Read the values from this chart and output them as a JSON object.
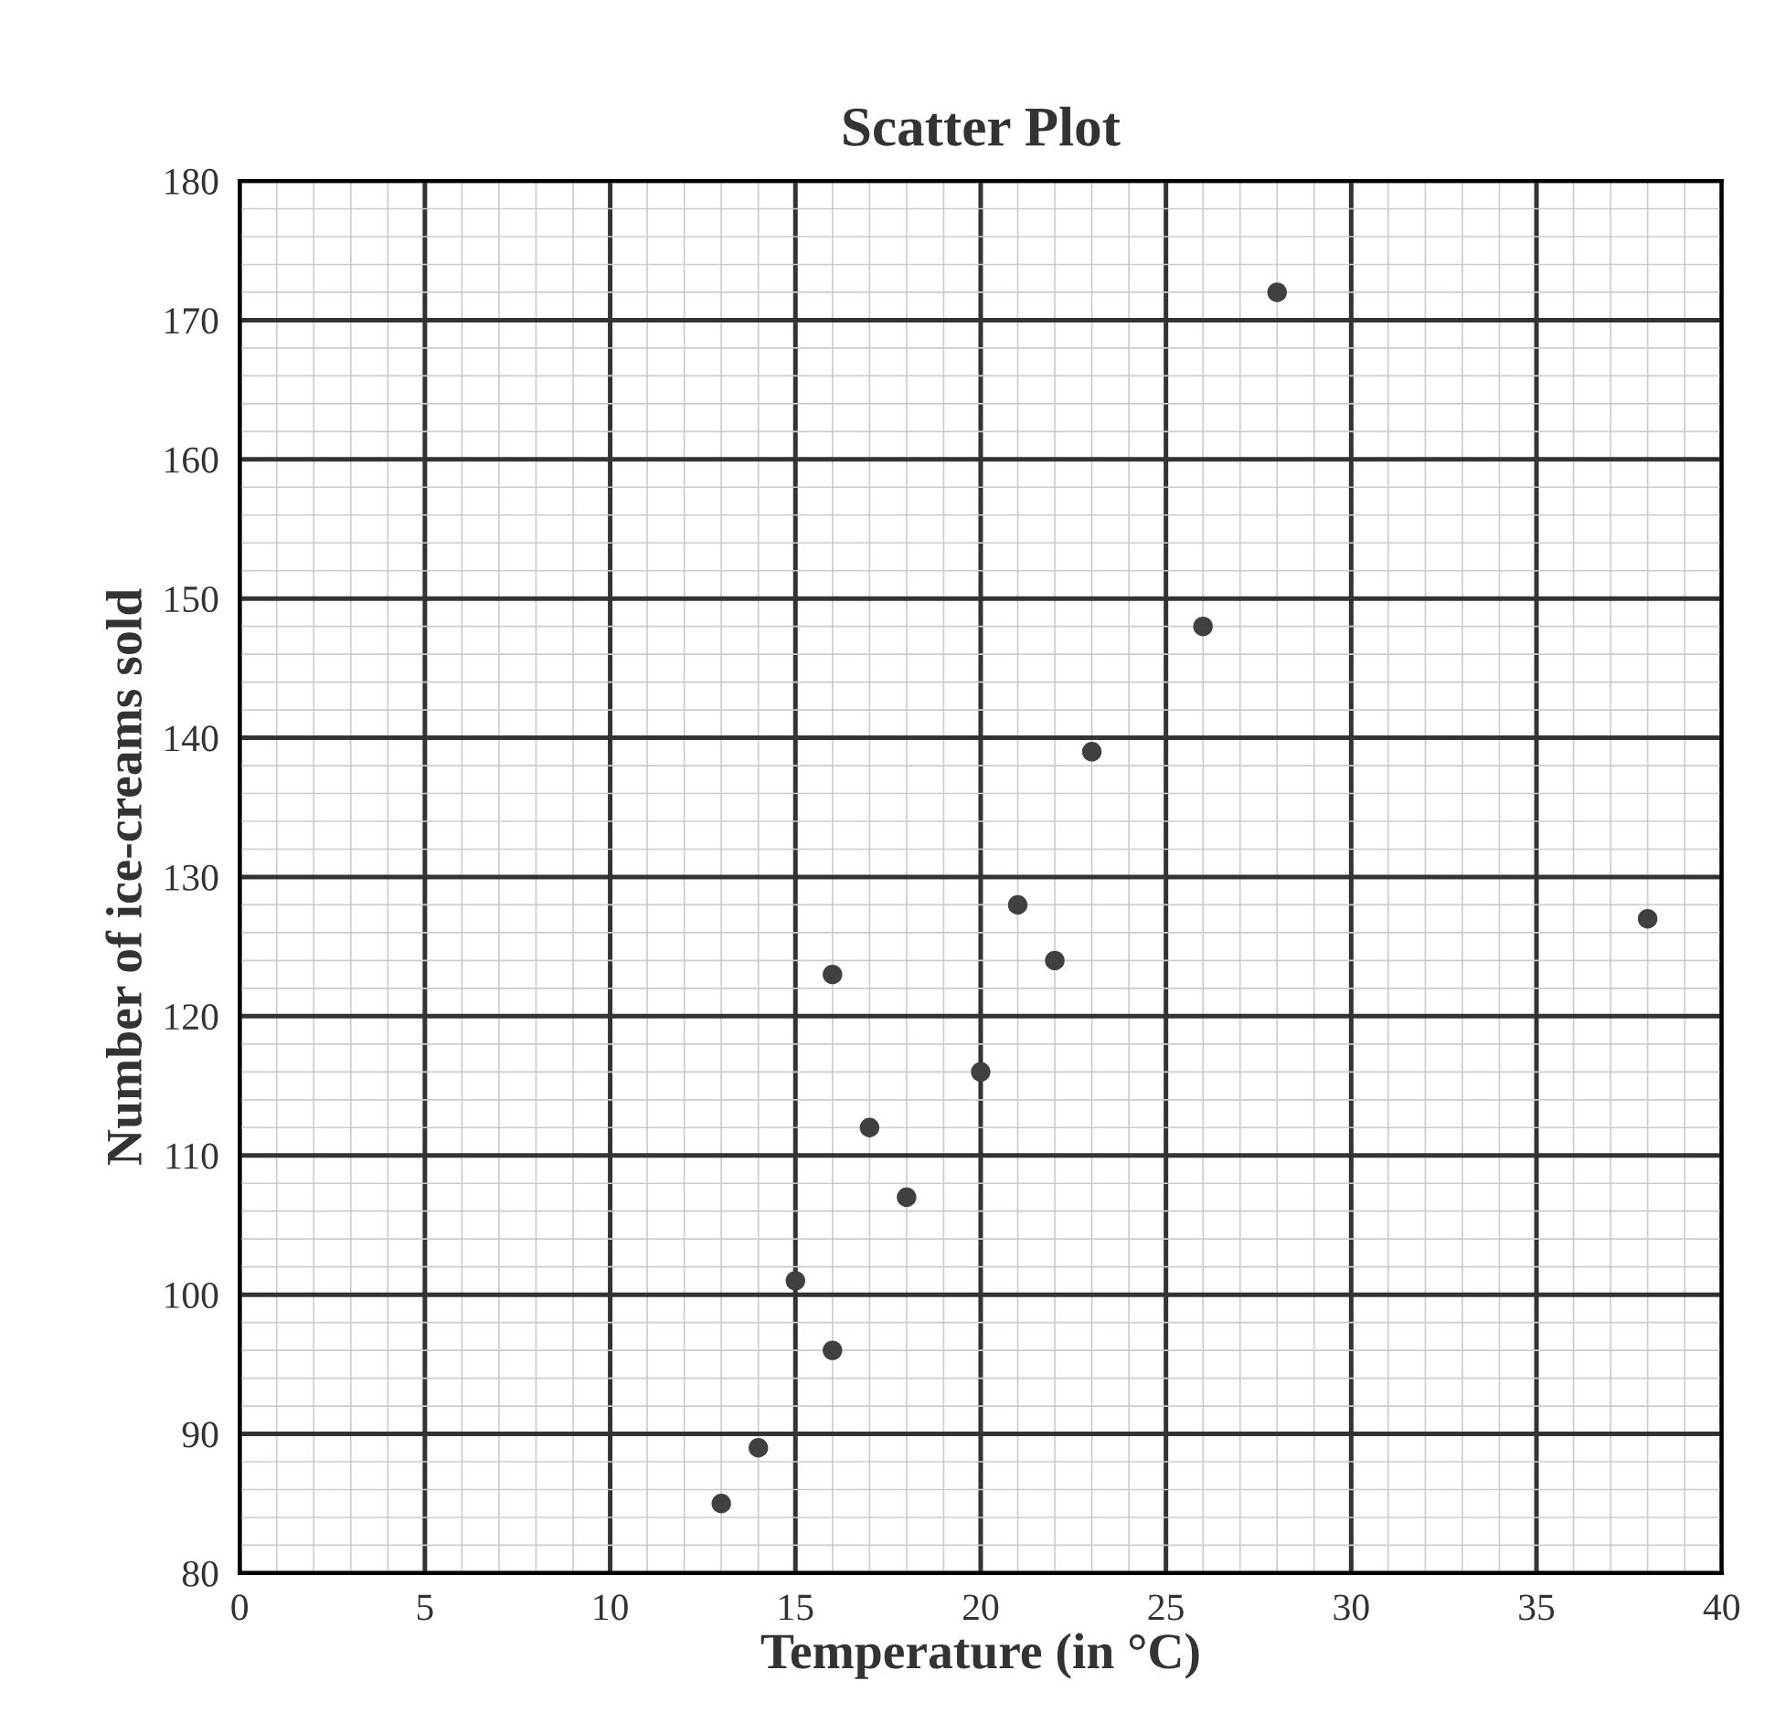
{
  "chart_data": {
    "type": "scatter",
    "title": "Scatter Plot",
    "xlabel": "Temperature (in °C)",
    "ylabel": "Number of ice-creams sold",
    "series": [
      {
        "color": "#404040",
        "x": [
          13,
          14,
          15,
          16,
          16,
          17,
          18,
          20,
          21,
          22,
          23,
          26,
          28,
          38
        ],
        "values": [
          85,
          89,
          101,
          96,
          123,
          112,
          107,
          116,
          128,
          124,
          139,
          148,
          172,
          127
        ]
      }
    ],
    "xlim": [
      0,
      40
    ],
    "xticks": [
      0,
      5,
      10,
      15,
      20,
      25,
      30,
      35,
      40
    ],
    "ylim": [
      80,
      180
    ],
    "yticks": [
      80,
      90,
      100,
      110,
      120,
      130,
      140,
      150,
      160,
      170,
      180
    ],
    "grid": true,
    "marker": "circle"
  }
}
